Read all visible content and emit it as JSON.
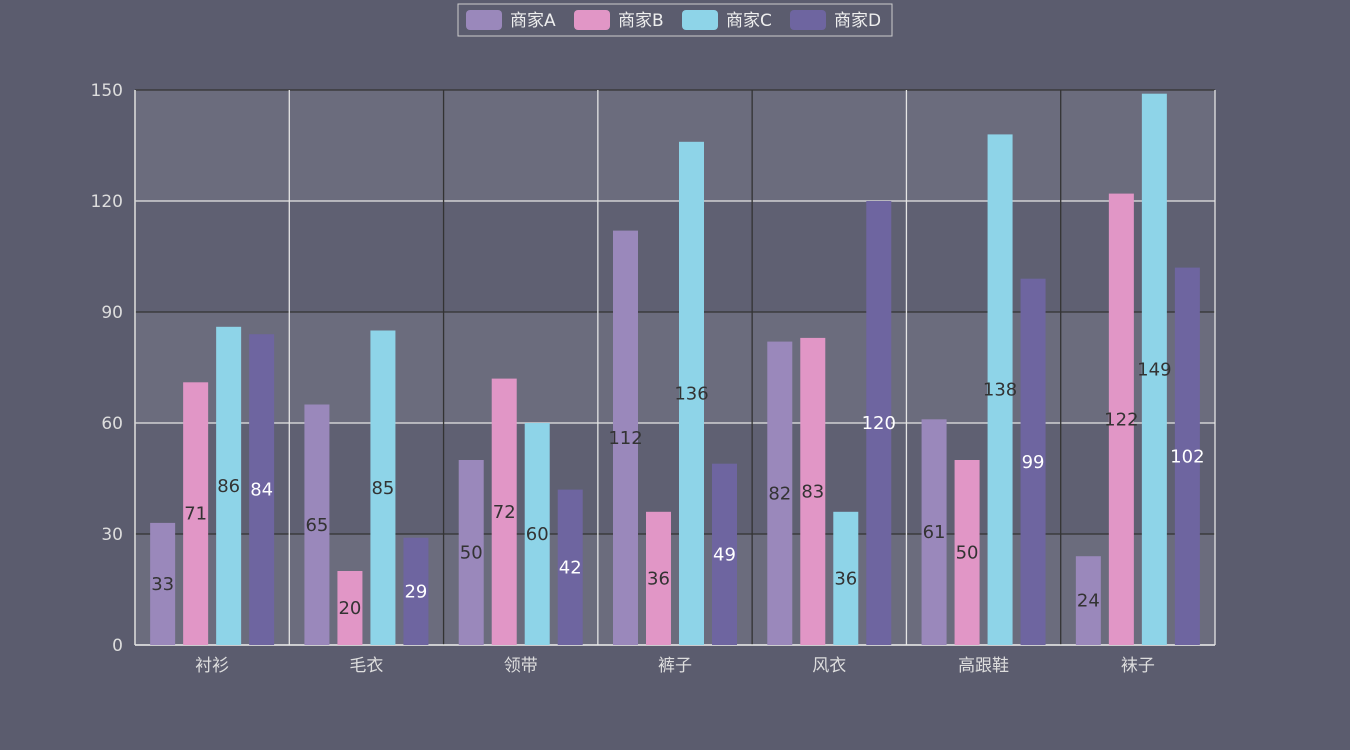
{
  "chart_data": {
    "type": "bar",
    "categories": [
      "衬衫",
      "毛衣",
      "领带",
      "裤子",
      "风衣",
      "高跟鞋",
      "袜子"
    ],
    "series": [
      {
        "name": "商家A",
        "color": "#9a88bb",
        "label_color": "#333333",
        "values": [
          33,
          65,
          50,
          112,
          82,
          61,
          24
        ]
      },
      {
        "name": "商家B",
        "color": "#e196c6",
        "label_color": "#333333",
        "values": [
          71,
          20,
          72,
          36,
          83,
          50,
          122
        ]
      },
      {
        "name": "商家C",
        "color": "#8ed4e8",
        "label_color": "#333333",
        "values": [
          86,
          85,
          60,
          136,
          36,
          138,
          149
        ]
      },
      {
        "name": "商家D",
        "color": "#6e65a0",
        "label_color": "#ffffff",
        "values": [
          84,
          29,
          42,
          49,
          120,
          99,
          102
        ]
      }
    ],
    "ylim": [
      0,
      150
    ],
    "yticks": [
      0,
      30,
      60,
      90,
      120,
      150
    ],
    "legend_position": "top-center",
    "grid": true,
    "colors": {
      "background": "#5b5c6e",
      "band_light": "#6b6c7d",
      "band_dark": "#5f6072",
      "grid_light": "#e5e5e5",
      "grid_dark": "#333333"
    }
  }
}
